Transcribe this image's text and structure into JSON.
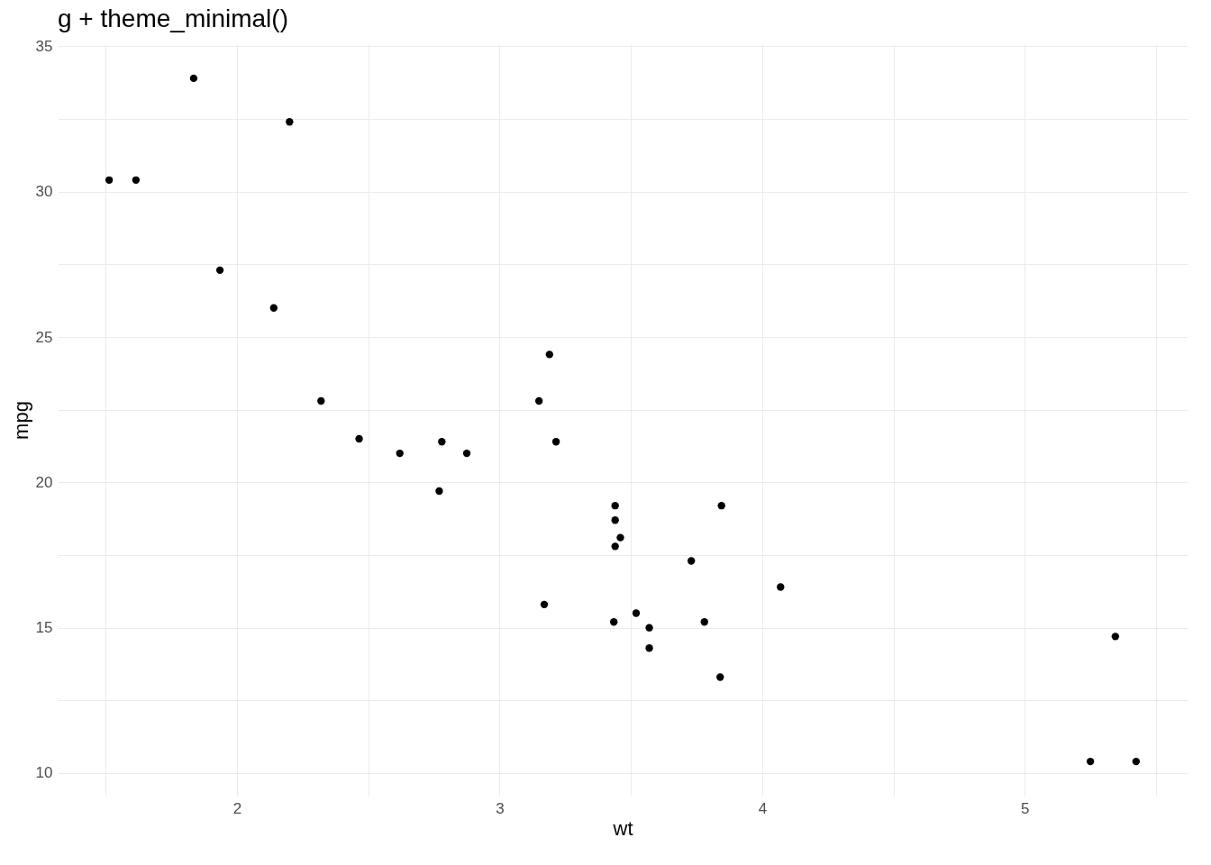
{
  "chart_data": {
    "type": "scatter",
    "title": "g + theme_minimal()",
    "xlabel": "wt",
    "ylabel": "mpg",
    "x": [
      2.62,
      2.875,
      2.32,
      3.215,
      3.44,
      3.46,
      3.57,
      3.19,
      3.15,
      3.44,
      3.44,
      4.07,
      3.73,
      3.78,
      5.25,
      5.424,
      5.345,
      2.2,
      1.615,
      1.835,
      2.465,
      3.52,
      3.435,
      3.84,
      3.845,
      1.935,
      2.14,
      1.513,
      3.17,
      2.77,
      3.57,
      2.78
    ],
    "series": [
      {
        "color": "#000000",
        "values": [
          21.0,
          21.0,
          22.8,
          21.4,
          18.7,
          18.1,
          14.3,
          24.4,
          22.8,
          19.2,
          17.8,
          16.4,
          17.3,
          15.2,
          10.4,
          10.4,
          14.7,
          32.4,
          30.4,
          33.9,
          21.5,
          15.5,
          15.2,
          13.3,
          19.2,
          27.3,
          26.0,
          30.4,
          15.8,
          19.7,
          15.0,
          21.4
        ]
      }
    ],
    "xlim": [
      1.317,
      5.62
    ],
    "ylim": [
      9.225,
      35.075
    ],
    "xticks": [
      {
        "value": 1.5,
        "label": null
      },
      2,
      {
        "value": 2.5,
        "label": null
      },
      3,
      {
        "value": 3.5,
        "label": null
      },
      4,
      {
        "value": 4.5,
        "label": null
      },
      5,
      {
        "value": 5.5,
        "label": null
      }
    ],
    "yticks": [
      10,
      {
        "value": 12.5,
        "label": null
      },
      15,
      {
        "value": 17.5,
        "label": null
      },
      20,
      {
        "value": 22.5,
        "label": null
      },
      25,
      {
        "value": 27.5,
        "label": null
      },
      30,
      {
        "value": 32.5,
        "label": null
      },
      35
    ],
    "grid": true,
    "marker": "circle"
  }
}
